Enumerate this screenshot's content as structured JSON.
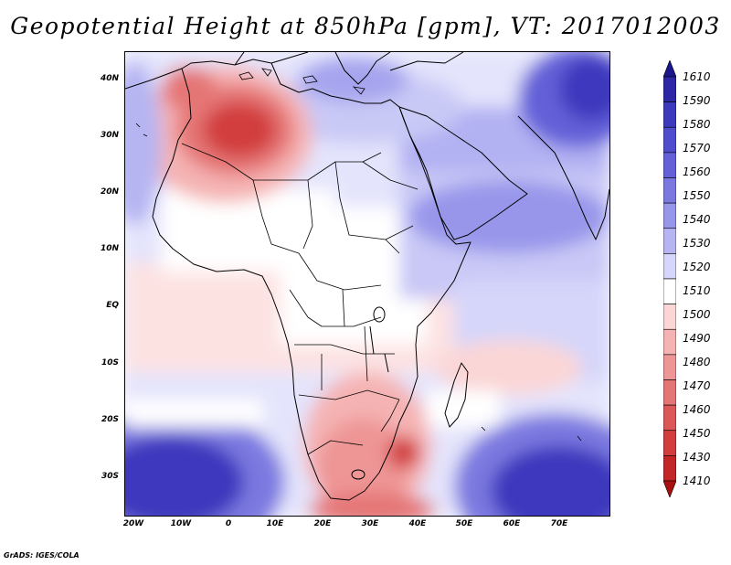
{
  "title": "Geopotential Height at 850hPa [gpm], VT: 2017012003",
  "credit": "GrADS: IGES/COLA",
  "lat_labels": [
    "40N",
    "30N",
    "20N",
    "10N",
    "EQ",
    "10S",
    "20S",
    "30S"
  ],
  "lon_labels": [
    "20W",
    "10W",
    "0",
    "10E",
    "20E",
    "30E",
    "40E",
    "50E",
    "60E",
    "70E"
  ],
  "colorbar": {
    "levels": [
      "1610",
      "1590",
      "1580",
      "1570",
      "1560",
      "1550",
      "1540",
      "1530",
      "1520",
      "1510",
      "1500",
      "1490",
      "1480",
      "1470",
      "1460",
      "1450",
      "1430",
      "1410"
    ],
    "colors": [
      "#1b168c",
      "#2d27a5",
      "#3d39bd",
      "#4f4dcd",
      "#6460d8",
      "#7b79e0",
      "#9896ea",
      "#b6b5f2",
      "#d6d6fa",
      "#ffffff",
      "#fbd6d6",
      "#f5b3b3",
      "#ee9595",
      "#e57676",
      "#dc5757",
      "#d23d3d",
      "#c32626",
      "#a80f0f"
    ]
  },
  "map": {
    "field": "850hPa geopotential height",
    "high_regions": [
      "Himalaya / Tibet",
      "South Indian Ocean",
      "South Atlantic",
      "Central Mediterranean"
    ],
    "low_regions": [
      "Morocco / Algeria",
      "South Africa / Mozambique"
    ]
  }
}
